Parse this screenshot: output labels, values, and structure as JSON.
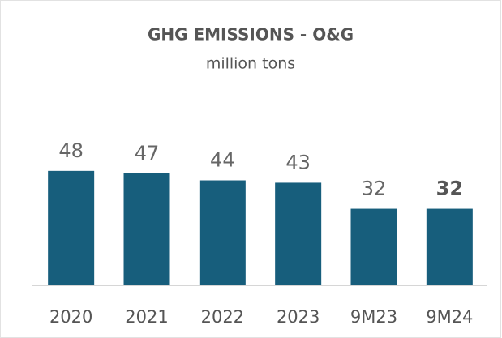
{
  "chart_data": {
    "type": "bar",
    "title": "GHG EMISSIONS - O&G",
    "subtitle": "million tons",
    "categories": [
      "2020",
      "2021",
      "2022",
      "2023",
      "9M23",
      "9M24"
    ],
    "values": [
      48,
      47,
      44,
      43,
      32,
      32
    ],
    "color": "#175e7c"
  }
}
